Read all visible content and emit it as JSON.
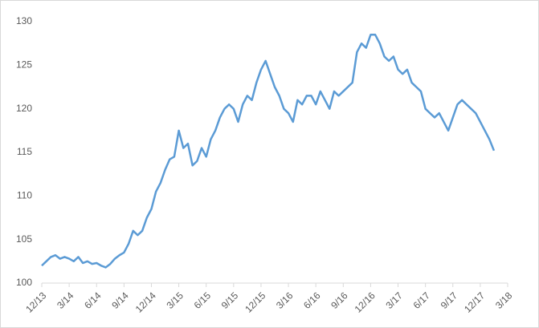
{
  "chart_data": {
    "type": "line",
    "categories": [
      "12/13",
      null,
      null,
      null,
      null,
      null,
      "3/14",
      null,
      null,
      null,
      null,
      null,
      "6/14",
      null,
      null,
      null,
      null,
      null,
      "9/14",
      null,
      null,
      null,
      null,
      null,
      "12/14",
      null,
      null,
      null,
      null,
      null,
      "3/15",
      null,
      null,
      null,
      null,
      null,
      "6/15",
      null,
      null,
      null,
      null,
      null,
      "9/15",
      null,
      null,
      null,
      null,
      null,
      "12/15",
      null,
      null,
      null,
      null,
      null,
      "3/16",
      null,
      null,
      null,
      null,
      null,
      "6/16",
      null,
      null,
      null,
      null,
      null,
      "9/16",
      null,
      null,
      null,
      null,
      null,
      "12/16",
      null,
      null,
      null,
      null,
      null,
      "3/17",
      null,
      null,
      null,
      null,
      null,
      "6/17",
      null,
      null,
      null,
      null,
      null,
      "9/17",
      null,
      null,
      null,
      null,
      null,
      "12/17",
      null,
      null,
      null,
      null,
      null,
      "3/18"
    ],
    "series": [
      {
        "color": "#5b9bd5",
        "values": [
          102,
          102.5,
          103,
          103.2,
          102.8,
          103,
          102.8,
          102.5,
          103,
          102.3,
          102.5,
          102.2,
          102.3,
          102,
          101.8,
          102.2,
          102.8,
          103.2,
          103.5,
          104.5,
          106,
          105.5,
          106,
          107.5,
          108.5,
          110.5,
          111.5,
          113,
          114.2,
          114.5,
          117.5,
          115.5,
          116,
          113.5,
          114,
          115.5,
          114.5,
          116.5,
          117.5,
          119,
          120,
          120.5,
          120,
          118.5,
          120.5,
          121.5,
          121,
          123,
          124.5,
          125.5,
          124,
          122.5,
          121.5,
          120,
          119.5,
          118.5,
          121,
          120.5,
          121.5,
          121.5,
          120.5,
          122,
          121,
          120,
          122,
          121.5,
          122,
          122.5,
          123,
          126.5,
          127.5,
          127,
          128.5,
          128.5,
          127.5,
          126,
          125.5,
          126,
          124.5,
          124,
          124.5,
          123,
          122.5,
          122,
          120,
          119.5,
          119,
          119.5,
          118.5,
          117.5,
          119,
          120.5,
          121,
          120.5,
          120,
          119.5,
          118.5,
          117.5,
          116.5,
          115.2,
          null,
          null,
          null
        ]
      }
    ],
    "ylim": [
      100,
      130
    ],
    "yticks": [
      100,
      105,
      110,
      115,
      120,
      125,
      130
    ],
    "grid": false
  }
}
